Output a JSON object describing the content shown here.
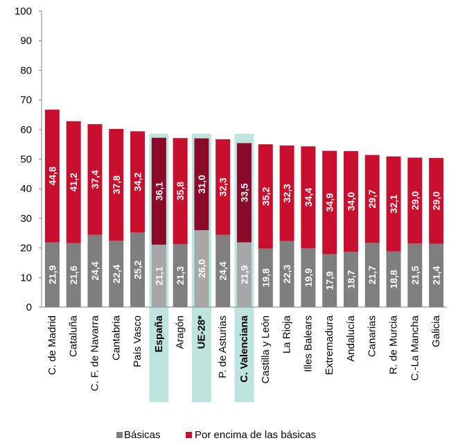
{
  "chart_data": {
    "type": "bar",
    "stacked": true,
    "categories": [
      "C. de Madrid",
      "Cataluña",
      "C. F. de Navarra",
      "Cantabria",
      "País Vasco",
      "España",
      "Aragón",
      "UE-28*",
      "P. de Asturias",
      "C. Valenciana",
      "Castilla y León",
      "La Rioja",
      "Illes Balears",
      "Extremadura",
      "Andalucía",
      "Canarias",
      "R. de Murcia",
      "C.-La Mancha",
      "Galicia"
    ],
    "highlighted": [
      "España",
      "UE-28*",
      "C. Valenciana"
    ],
    "series": [
      {
        "name": "Básicas",
        "color": "#7f7f7f",
        "highlight_color": "#a7a7a7",
        "values": [
          21.9,
          21.6,
          24.4,
          22.4,
          25.2,
          21.1,
          21.3,
          26.0,
          24.4,
          21.9,
          19.8,
          22.3,
          19.9,
          17.9,
          18.7,
          21.7,
          18.8,
          21.5,
          21.4
        ],
        "labels": [
          "21,9",
          "21,6",
          "24,4",
          "22,4",
          "25,2",
          "21,1",
          "21,3",
          "26,0",
          "24,4",
          "21,9",
          "19,8",
          "22,3",
          "19,9",
          "17,9",
          "18,7",
          "21,7",
          "18,8",
          "21,5",
          "21,4"
        ]
      },
      {
        "name": "Por encima de las básicas",
        "color": "#c8102e",
        "highlight_color": "#8b0a2a",
        "values": [
          44.8,
          41.2,
          37.4,
          37.8,
          34.2,
          36.1,
          35.8,
          31.0,
          32.3,
          33.5,
          35.2,
          32.3,
          34.4,
          34.9,
          34.0,
          29.7,
          32.1,
          29.0,
          29.0
        ],
        "labels": [
          "44,8",
          "41,2",
          "37,4",
          "37,8",
          "34,2",
          "36,1",
          "35,8",
          "31,0",
          "32,3",
          "33,5",
          "35,2",
          "32,3",
          "34,4",
          "34,9",
          "34,0",
          "29,7",
          "32,1",
          "29,0",
          "29,0"
        ]
      }
    ],
    "ylim": [
      0,
      100
    ],
    "yticks": [
      "0",
      "10",
      "20",
      "30",
      "40",
      "50",
      "60",
      "70",
      "80",
      "90",
      "100"
    ],
    "highlight_band_color": "#bde5de",
    "grid": false,
    "legend_position": "bottom-center"
  }
}
